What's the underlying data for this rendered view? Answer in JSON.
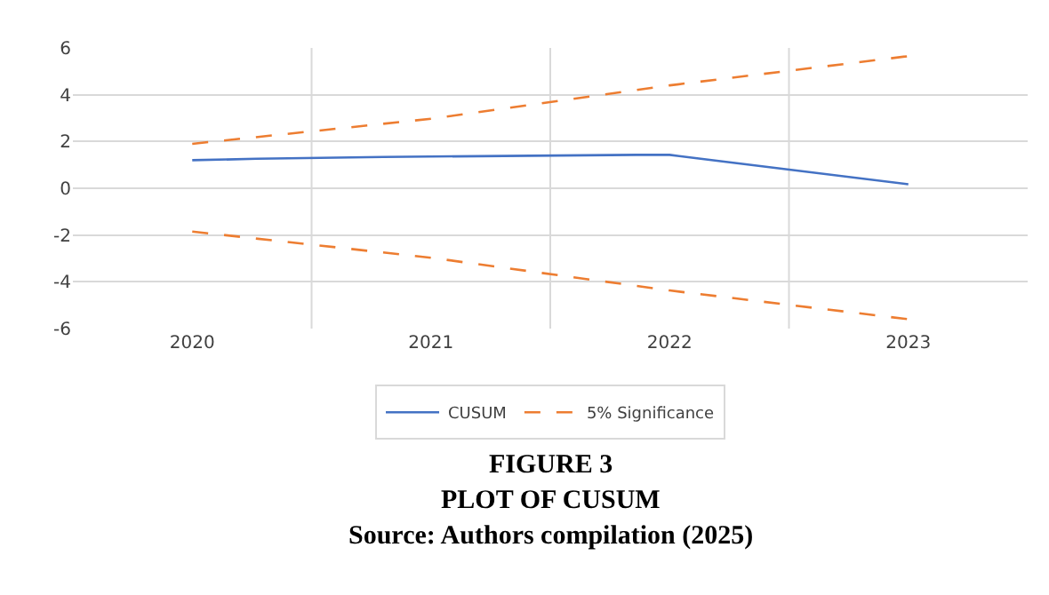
{
  "chart_data": {
    "type": "line",
    "title": "FIGURE 3",
    "subtitle": "PLOT OF CUSUM",
    "annotations": [
      "Source: Authors compilation (2025)"
    ],
    "series": [
      {
        "name": "CUSUM",
        "color": "#4472c4",
        "x": [
          2020,
          2020.27,
          2020.8,
          2021.86,
          2022.0,
          2022.13,
          2023
        ],
        "values": [
          1.2,
          1.26,
          1.34,
          1.43,
          1.43,
          1.26,
          0.17
        ]
      },
      {
        "name": "5% Significance",
        "color": "#ed7d31",
        "line_style": "dashed",
        "x": [
          2020,
          2021,
          2022,
          2023
        ],
        "values": [
          1.9,
          2.97,
          4.4,
          5.65
        ]
      },
      {
        "color": "#ed7d31",
        "line_style": "dashed",
        "x": [
          2020,
          2021,
          2022,
          2023
        ],
        "values": [
          -1.85,
          -2.97,
          -4.37,
          -5.6
        ]
      }
    ],
    "xlim": [
      2019.5,
      2023.5
    ],
    "xticks": [
      2020,
      {
        "value": 2020.5,
        "label": null
      },
      2021,
      {
        "value": 2021.5,
        "label": null
      },
      2022,
      {
        "value": 2022.5,
        "label": null
      },
      2023
    ],
    "ylim": [
      -6,
      6
    ],
    "yticks": [
      -6,
      -4,
      -2,
      0,
      2,
      4,
      6
    ],
    "grid": true,
    "legend": "bottom",
    "marker": "none",
    "line_style": "solid"
  }
}
